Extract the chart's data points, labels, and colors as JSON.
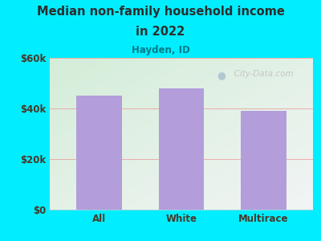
{
  "title_line1": "Median non-family household income",
  "title_line2": "in 2022",
  "subtitle": "Hayden, ID",
  "categories": [
    "All",
    "White",
    "Multirace"
  ],
  "values": [
    45000,
    48000,
    39000
  ],
  "bar_color": "#b39ddb",
  "background_outer": "#00eeff",
  "title_color": "#2d2d2d",
  "subtitle_color": "#007b8a",
  "tick_label_color": "#4a3728",
  "ytick_labels": [
    "$0",
    "$20k",
    "$40k",
    "$60k"
  ],
  "ytick_values": [
    0,
    20000,
    40000,
    60000
  ],
  "ylim": [
    0,
    60000
  ],
  "grid_color": "#f08080",
  "watermark": "  City-Data.com",
  "watermark_color": "#c0c0c0"
}
